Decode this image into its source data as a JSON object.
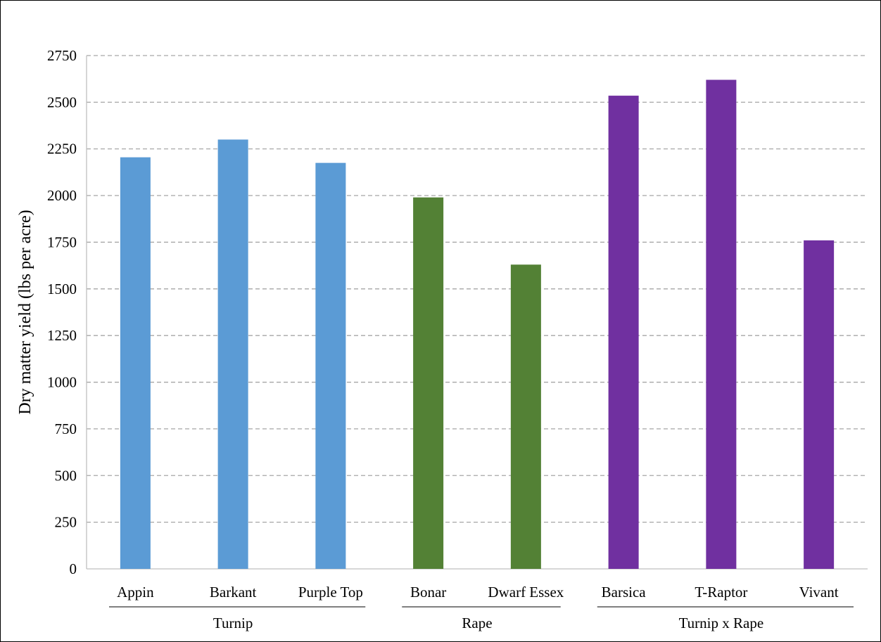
{
  "chart_data": {
    "type": "bar",
    "title": "",
    "xlabel": "",
    "ylabel": "Dry matter yield (lbs per acre)",
    "ylim": [
      0,
      2750
    ],
    "yticks": [
      0,
      250,
      500,
      750,
      1000,
      1250,
      1500,
      1750,
      2000,
      2250,
      2500,
      2750
    ],
    "grid": true,
    "legend": "none",
    "categories": [
      "Appin",
      "Barkant",
      "Purple Top",
      "Bonar",
      "Dwarf Essex",
      "Barsica",
      "T-Raptor",
      "Vivant"
    ],
    "groups": [
      {
        "name": "Turnip",
        "categories": [
          "Appin",
          "Barkant",
          "Purple Top"
        ],
        "color": "#5B9BD5"
      },
      {
        "name": "Rape",
        "categories": [
          "Bonar",
          "Dwarf Essex"
        ],
        "color": "#538135"
      },
      {
        "name": "Turnip x Rape",
        "categories": [
          "Barsica",
          "T-Raptor",
          "Vivant"
        ],
        "color": "#7030A0"
      }
    ],
    "values": [
      2205,
      2300,
      2175,
      1990,
      1630,
      2535,
      2620,
      1760
    ]
  }
}
